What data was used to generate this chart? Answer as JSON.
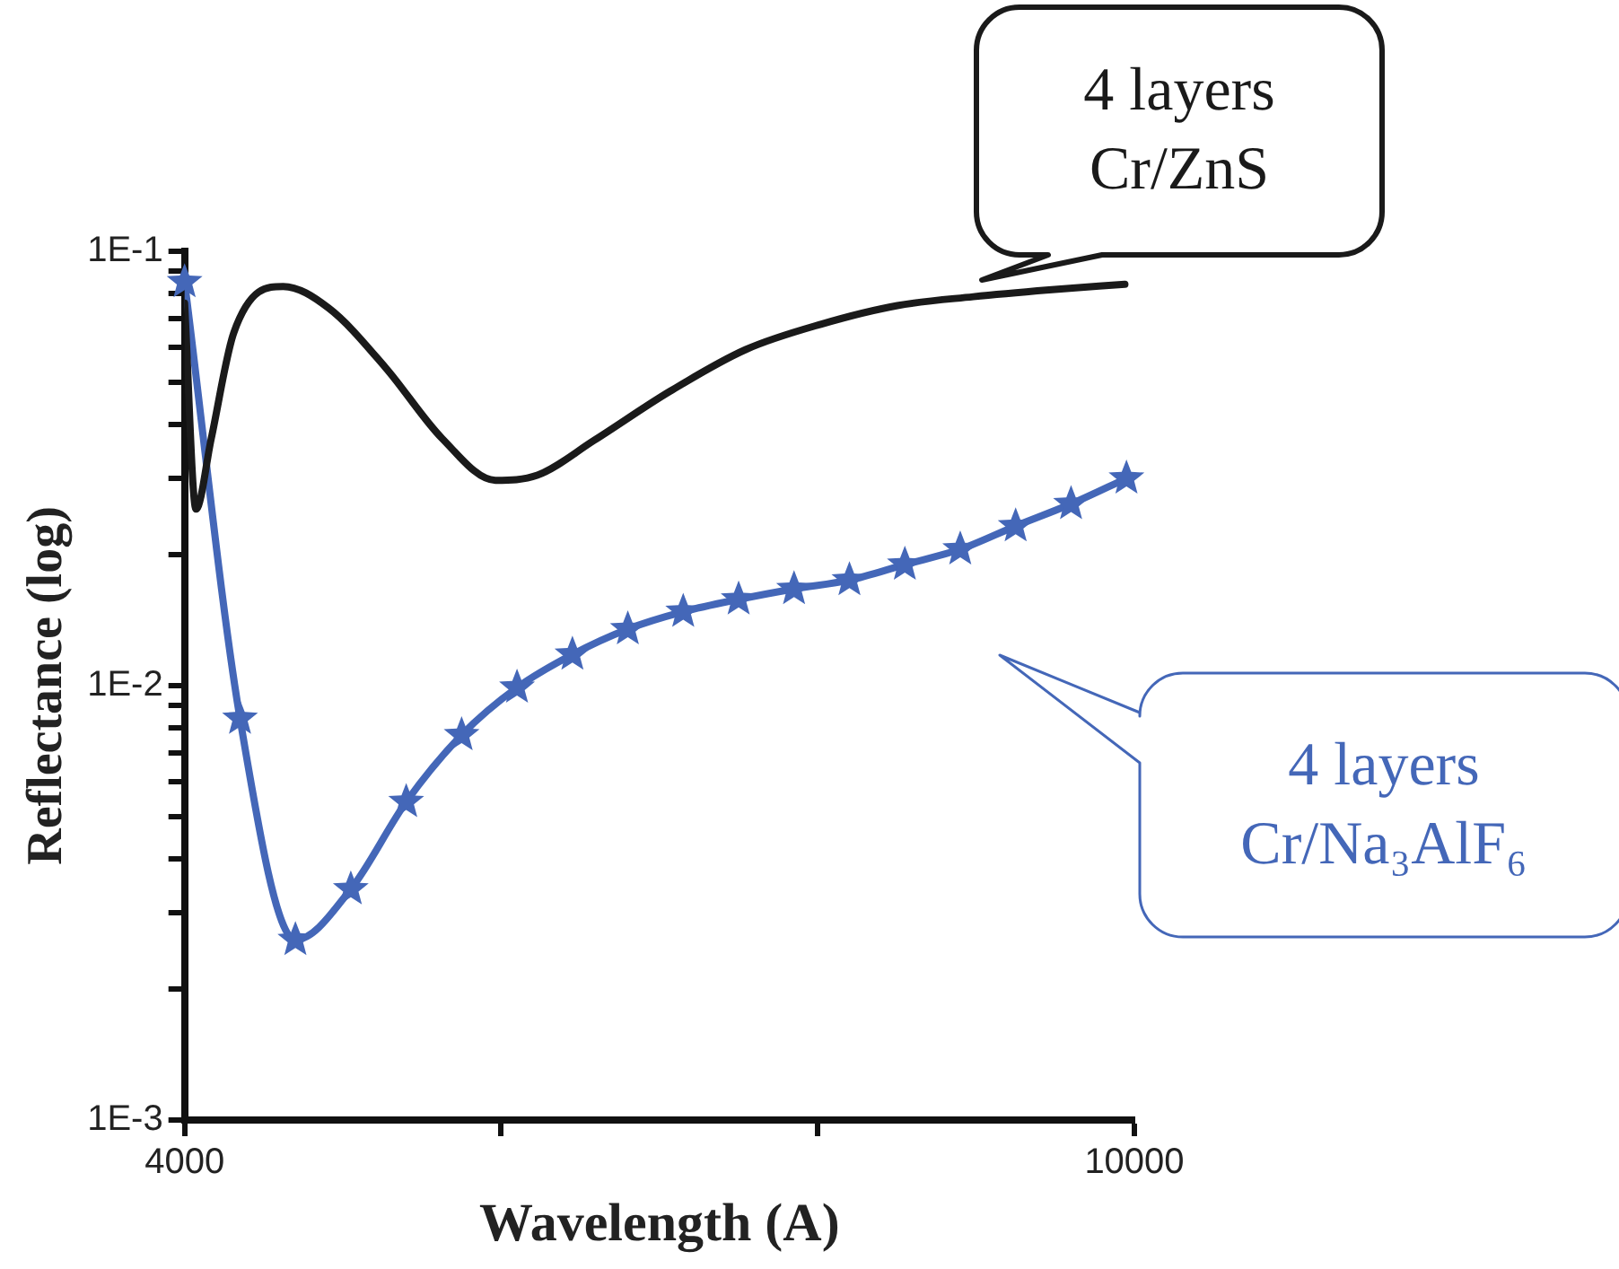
{
  "chart_data": {
    "type": "line",
    "xlabel": "Wavelength (A)",
    "ylabel": "Reflectance (log)",
    "log": "y",
    "grid": false,
    "legend": false,
    "xlim": [
      4000,
      10000
    ],
    "xticks": [
      4000,
      {
        "value": 6000,
        "label": null
      },
      {
        "value": 8000,
        "label": null
      },
      10000
    ],
    "ylim": [
      0.001,
      0.1
    ],
    "yticks": [
      {
        "value": 0.001,
        "label": "1E-3"
      },
      {
        "value": 0.002,
        "label": null
      },
      {
        "value": 0.003,
        "label": null
      },
      {
        "value": 0.004,
        "label": null
      },
      {
        "value": 0.005,
        "label": null
      },
      {
        "value": 0.006,
        "label": null
      },
      {
        "value": 0.007,
        "label": null
      },
      {
        "value": 0.008,
        "label": null
      },
      {
        "value": 0.009,
        "label": null
      },
      {
        "value": 0.01,
        "label": "1E-2"
      },
      {
        "value": 0.02,
        "label": null
      },
      {
        "value": 0.03,
        "label": null
      },
      {
        "value": 0.04,
        "label": null
      },
      {
        "value": 0.05,
        "label": null
      },
      {
        "value": 0.06,
        "label": null
      },
      {
        "value": 0.07,
        "label": null
      },
      {
        "value": 0.08,
        "label": null
      },
      {
        "value": 0.09,
        "label": null
      },
      {
        "value": 0.1,
        "label": "1E-1"
      }
    ],
    "series": [
      {
        "name": "4 layers\nCr/ZnS",
        "color": "#1a1a1a",
        "marker": "none",
        "x": [
          4000,
          4072,
          4168,
          4311,
          4623,
          4910,
          5269,
          5629,
          5964,
          6228,
          6587,
          7066,
          7545,
          8024,
          8503,
          8982,
          9461,
          9940
        ],
        "values": [
          0.076,
          0.0255,
          0.037,
          0.065,
          0.083,
          0.074,
          0.054,
          0.037,
          0.0297,
          0.0305,
          0.0367,
          0.0476,
          0.0594,
          0.068,
          0.075,
          0.0786,
          0.0815,
          0.084
        ]
      },
      {
        "name": "4 layers\nCr/Na₃AlF₆",
        "color": "#4467b8",
        "marker": "star",
        "x": [
          4000,
          4350,
          4700,
          5050,
          5400,
          5750,
          6100,
          6450,
          6800,
          7150,
          7500,
          7850,
          8200,
          8550,
          8900,
          9250,
          9600,
          9950
        ],
        "values": [
          0.085,
          0.0084,
          0.0026,
          0.0034,
          0.0054,
          0.0077,
          0.0099,
          0.0118,
          0.0135,
          0.0148,
          0.0158,
          0.0167,
          0.0175,
          0.019,
          0.0206,
          0.0233,
          0.0262,
          0.03
        ]
      }
    ]
  }
}
